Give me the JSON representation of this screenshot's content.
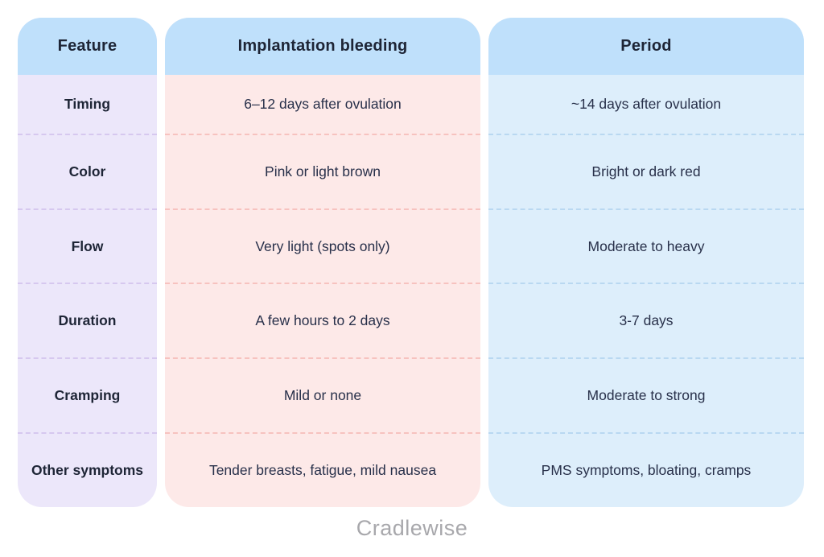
{
  "page": {
    "logo_text": "Cradlewise"
  },
  "colors": {
    "header_bg": "#bfe0fb",
    "feature_col_bg": "#ece7fa",
    "implantation_col_bg": "#fde9e8",
    "period_col_bg": "#ddeefb",
    "feature_divider": "#d6c8ef",
    "implantation_divider": "#f7c2bf",
    "period_divider": "#b9d8f1",
    "text_dark": "#1e2536",
    "logo_gray": "#a8a8ac"
  },
  "chart_data": {
    "type": "table",
    "title": "",
    "columns": [
      "Feature",
      "Implantation bleeding",
      "Period"
    ],
    "rows": [
      [
        "Timing",
        "6–12 days after ovulation",
        "~14 days after ovulation"
      ],
      [
        "Color",
        "Pink or light brown",
        "Bright or dark red"
      ],
      [
        "Flow",
        "Very light (spots only)",
        "Moderate to heavy"
      ],
      [
        "Duration",
        "A few hours to 2 days",
        "3-7 days"
      ],
      [
        "Cramping",
        "Mild or none",
        "Moderate to strong"
      ],
      [
        "Other symptoms",
        "Tender breasts, fatigue, mild nausea",
        "PMS symptoms, bloating, cramps"
      ]
    ]
  },
  "table": {
    "headers": {
      "feature": "Feature",
      "implantation": "Implantation bleeding",
      "period": "Period"
    },
    "rows": [
      {
        "feature": "Timing",
        "implantation": "6–12 days after ovulation",
        "period": "~14 days after ovulation"
      },
      {
        "feature": "Color",
        "implantation": "Pink or light brown",
        "period": "Bright or dark red"
      },
      {
        "feature": "Flow",
        "implantation": "Very light (spots only)",
        "period": "Moderate to heavy"
      },
      {
        "feature": "Duration",
        "implantation": "A few hours to 2 days",
        "period": "3-7 days"
      },
      {
        "feature": "Cramping",
        "implantation": "Mild or none",
        "period": "Moderate to strong"
      },
      {
        "feature": "Other symptoms",
        "implantation": "Tender breasts, fatigue, mild nausea",
        "period": "PMS symptoms, bloating, cramps"
      }
    ]
  }
}
